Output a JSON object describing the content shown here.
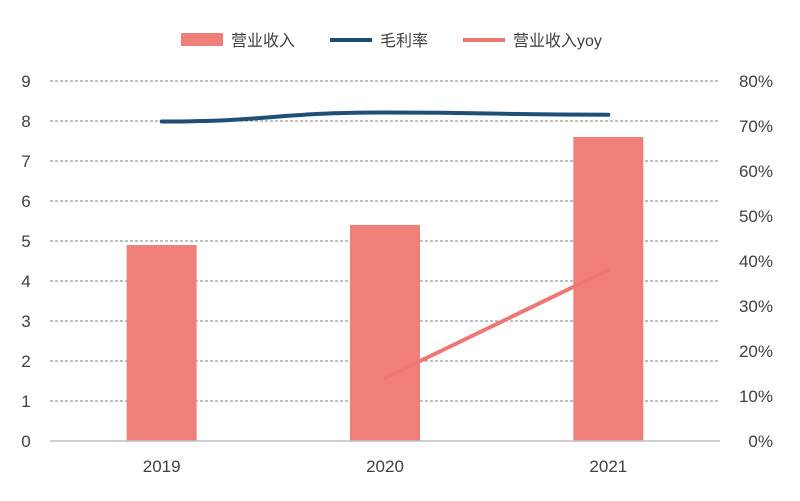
{
  "legend": {
    "revenue": "营业收入",
    "margin": "毛利率",
    "yoy": "营业收入yoy"
  },
  "colors": {
    "bar": "#f07f79",
    "margin_line": "#1f4e79",
    "yoy_line": "#ec7773",
    "grid": "#7f7f7f",
    "text": "#404040"
  },
  "chart_data": {
    "type": "bar",
    "categories": [
      "2019",
      "2020",
      "2021"
    ],
    "series": [
      {
        "name": "营业收入",
        "type": "bar",
        "axis": "left",
        "values": [
          4.9,
          5.4,
          7.6
        ]
      },
      {
        "name": "毛利率",
        "type": "line",
        "axis": "right",
        "values": [
          0.71,
          0.73,
          0.725
        ]
      },
      {
        "name": "营业收入yoy",
        "type": "line",
        "axis": "right",
        "values": [
          null,
          0.14,
          0.38
        ]
      }
    ],
    "left_axis": {
      "ylim": [
        0,
        9
      ],
      "ticks": [
        "0",
        "1",
        "2",
        "3",
        "4",
        "5",
        "6",
        "7",
        "8",
        "9"
      ]
    },
    "right_axis": {
      "ylim": [
        0,
        0.8
      ],
      "ticks": [
        "0%",
        "10%",
        "20%",
        "30%",
        "40%",
        "50%",
        "60%",
        "70%",
        "80%"
      ]
    },
    "grid": true,
    "legend_position": "top"
  }
}
